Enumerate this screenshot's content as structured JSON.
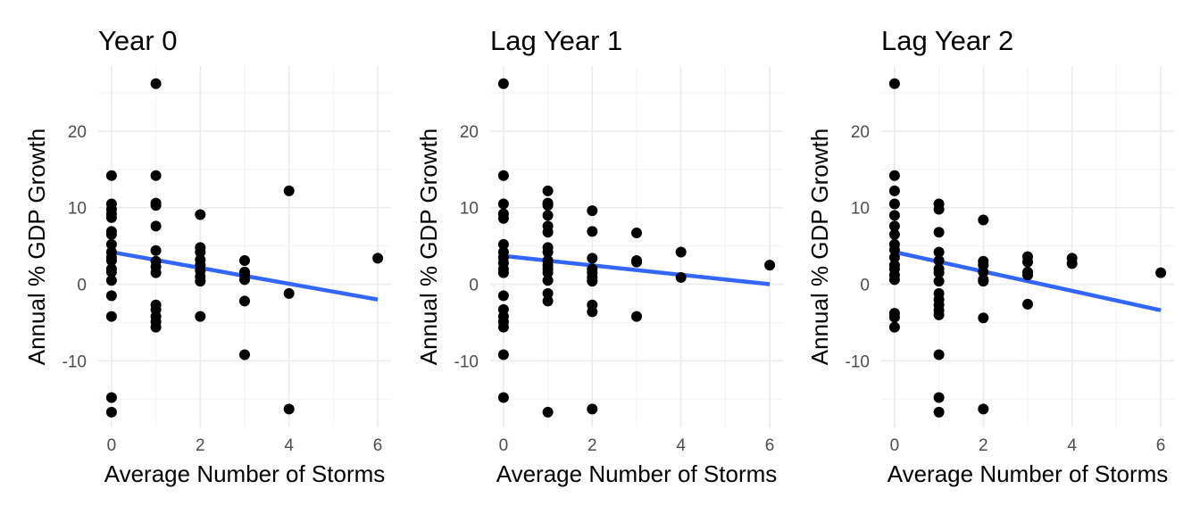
{
  "colors": {
    "point": "#000000",
    "fit_line": "#3366ff",
    "grid": "#ebebeb",
    "tick_text": "#4d4d4d"
  },
  "chart_data": [
    {
      "type": "scatter",
      "title": "Year 0",
      "xlabel": "Average Number of Storms",
      "ylabel": "Annual % GDP Growth",
      "xlim": [
        -0.3,
        6.3
      ],
      "ylim": [
        -18.7,
        28.5
      ],
      "x_ticks": [
        "0",
        "2",
        "4",
        "6"
      ],
      "y_ticks": [
        "-10",
        "0",
        "10",
        "20"
      ],
      "grid": true,
      "points": [
        [
          0,
          14.2
        ],
        [
          0,
          10.5
        ],
        [
          0,
          9.8
        ],
        [
          0,
          9.2
        ],
        [
          0,
          8.7
        ],
        [
          0,
          6.9
        ],
        [
          0,
          6.5
        ],
        [
          0,
          5.2
        ],
        [
          0,
          4.2
        ],
        [
          0,
          3.5
        ],
        [
          0,
          3.1
        ],
        [
          0,
          2.0
        ],
        [
          0,
          1.6
        ],
        [
          0,
          0.5
        ],
        [
          0,
          -1.5
        ],
        [
          0,
          -4.2
        ],
        [
          0,
          -14.8
        ],
        [
          0,
          -16.7
        ],
        [
          1,
          26.2
        ],
        [
          1,
          14.2
        ],
        [
          1,
          10.6
        ],
        [
          1,
          10.3
        ],
        [
          1,
          7.6
        ],
        [
          1,
          4.4
        ],
        [
          1,
          3.0
        ],
        [
          1,
          2.3
        ],
        [
          1,
          1.5
        ],
        [
          1,
          -2.7
        ],
        [
          1,
          -3.3
        ],
        [
          1,
          -4.2
        ],
        [
          1,
          -4.9
        ],
        [
          1,
          -5.6
        ],
        [
          2,
          9.1
        ],
        [
          2,
          4.8
        ],
        [
          2,
          4.2
        ],
        [
          2,
          3.2
        ],
        [
          2,
          2.5
        ],
        [
          2,
          1.8
        ],
        [
          2,
          1.0
        ],
        [
          2,
          0.4
        ],
        [
          2,
          -4.2
        ],
        [
          3,
          3.1
        ],
        [
          3,
          1.6
        ],
        [
          3,
          1.2
        ],
        [
          3,
          0.6
        ],
        [
          3,
          -2.2
        ],
        [
          3,
          -9.2
        ],
        [
          4,
          12.2
        ],
        [
          4,
          -1.2
        ],
        [
          4,
          -16.3
        ],
        [
          6,
          3.4
        ]
      ],
      "fit": {
        "x": [
          0,
          6
        ],
        "y": [
          4.2,
          -2.0
        ]
      }
    },
    {
      "type": "scatter",
      "title": "Lag Year 1",
      "xlabel": "Average Number of Storms",
      "ylabel": "Annual % GDP Growth",
      "xlim": [
        -0.3,
        6.3
      ],
      "ylim": [
        -18.7,
        28.5
      ],
      "x_ticks": [
        "0",
        "2",
        "4",
        "6"
      ],
      "y_ticks": [
        "-10",
        "0",
        "10",
        "20"
      ],
      "grid": true,
      "points": [
        [
          0,
          26.2
        ],
        [
          0,
          14.2
        ],
        [
          0,
          10.5
        ],
        [
          0,
          9.2
        ],
        [
          0,
          8.6
        ],
        [
          0,
          5.2
        ],
        [
          0,
          4.2
        ],
        [
          0,
          3.5
        ],
        [
          0,
          2.8
        ],
        [
          0,
          2.0
        ],
        [
          0,
          1.5
        ],
        [
          0,
          -1.5
        ],
        [
          0,
          -3.3
        ],
        [
          0,
          -4.2
        ],
        [
          0,
          -4.9
        ],
        [
          0,
          -5.6
        ],
        [
          0,
          -9.2
        ],
        [
          0,
          -14.8
        ],
        [
          1,
          12.2
        ],
        [
          1,
          10.6
        ],
        [
          1,
          10.3
        ],
        [
          1,
          9.0
        ],
        [
          1,
          7.6
        ],
        [
          1,
          6.8
        ],
        [
          1,
          4.8
        ],
        [
          1,
          4.2
        ],
        [
          1,
          3.1
        ],
        [
          1,
          2.5
        ],
        [
          1,
          2.0
        ],
        [
          1,
          1.5
        ],
        [
          1,
          0.5
        ],
        [
          1,
          -1.2
        ],
        [
          1,
          -2.2
        ],
        [
          1,
          -16.7
        ],
        [
          2,
          9.6
        ],
        [
          2,
          6.9
        ],
        [
          2,
          3.4
        ],
        [
          2,
          2.0
        ],
        [
          2,
          1.5
        ],
        [
          2,
          0.9
        ],
        [
          2,
          0.4
        ],
        [
          2,
          -2.7
        ],
        [
          2,
          -3.6
        ],
        [
          2,
          -16.3
        ],
        [
          3,
          6.7
        ],
        [
          3,
          3.1
        ],
        [
          3,
          2.9
        ],
        [
          3,
          -4.2
        ],
        [
          4,
          4.2
        ],
        [
          4,
          0.9
        ],
        [
          6,
          2.5
        ]
      ],
      "fit": {
        "x": [
          0,
          6
        ],
        "y": [
          3.7,
          0.0
        ]
      }
    },
    {
      "type": "scatter",
      "title": "Lag Year 2",
      "xlabel": "Average Number of Storms",
      "ylabel": "Annual % GDP Growth",
      "xlim": [
        -0.3,
        6.3
      ],
      "ylim": [
        -18.7,
        28.5
      ],
      "x_ticks": [
        "0",
        "2",
        "4",
        "6"
      ],
      "y_ticks": [
        "-10",
        "0",
        "10",
        "20"
      ],
      "grid": true,
      "points": [
        [
          0,
          26.2
        ],
        [
          0,
          14.2
        ],
        [
          0,
          12.2
        ],
        [
          0,
          10.5
        ],
        [
          0,
          9.0
        ],
        [
          0,
          7.6
        ],
        [
          0,
          6.5
        ],
        [
          0,
          5.2
        ],
        [
          0,
          4.5
        ],
        [
          0,
          3.5
        ],
        [
          0,
          2.5
        ],
        [
          0,
          2.0
        ],
        [
          0,
          1.2
        ],
        [
          0,
          0.6
        ],
        [
          0,
          -3.8
        ],
        [
          0,
          -4.3
        ],
        [
          0,
          -5.6
        ],
        [
          1,
          10.5
        ],
        [
          1,
          9.8
        ],
        [
          1,
          6.8
        ],
        [
          1,
          4.2
        ],
        [
          1,
          3.1
        ],
        [
          1,
          2.0
        ],
        [
          1,
          1.5
        ],
        [
          1,
          0.4
        ],
        [
          1,
          -1.2
        ],
        [
          1,
          -2.0
        ],
        [
          1,
          -2.7
        ],
        [
          1,
          -3.4
        ],
        [
          1,
          -4.0
        ],
        [
          1,
          -9.2
        ],
        [
          1,
          -14.8
        ],
        [
          1,
          -16.7
        ],
        [
          2,
          8.4
        ],
        [
          2,
          3.0
        ],
        [
          2,
          2.5
        ],
        [
          2,
          1.6
        ],
        [
          2,
          0.6
        ],
        [
          2,
          0.4
        ],
        [
          2,
          -4.4
        ],
        [
          2,
          -16.3
        ],
        [
          3,
          3.6
        ],
        [
          3,
          2.9
        ],
        [
          3,
          1.6
        ],
        [
          3,
          1.2
        ],
        [
          3,
          -2.6
        ],
        [
          4,
          3.4
        ],
        [
          4,
          2.7
        ],
        [
          6,
          1.5
        ]
      ],
      "fit": {
        "x": [
          0,
          6
        ],
        "y": [
          4.2,
          -3.4
        ]
      }
    }
  ]
}
